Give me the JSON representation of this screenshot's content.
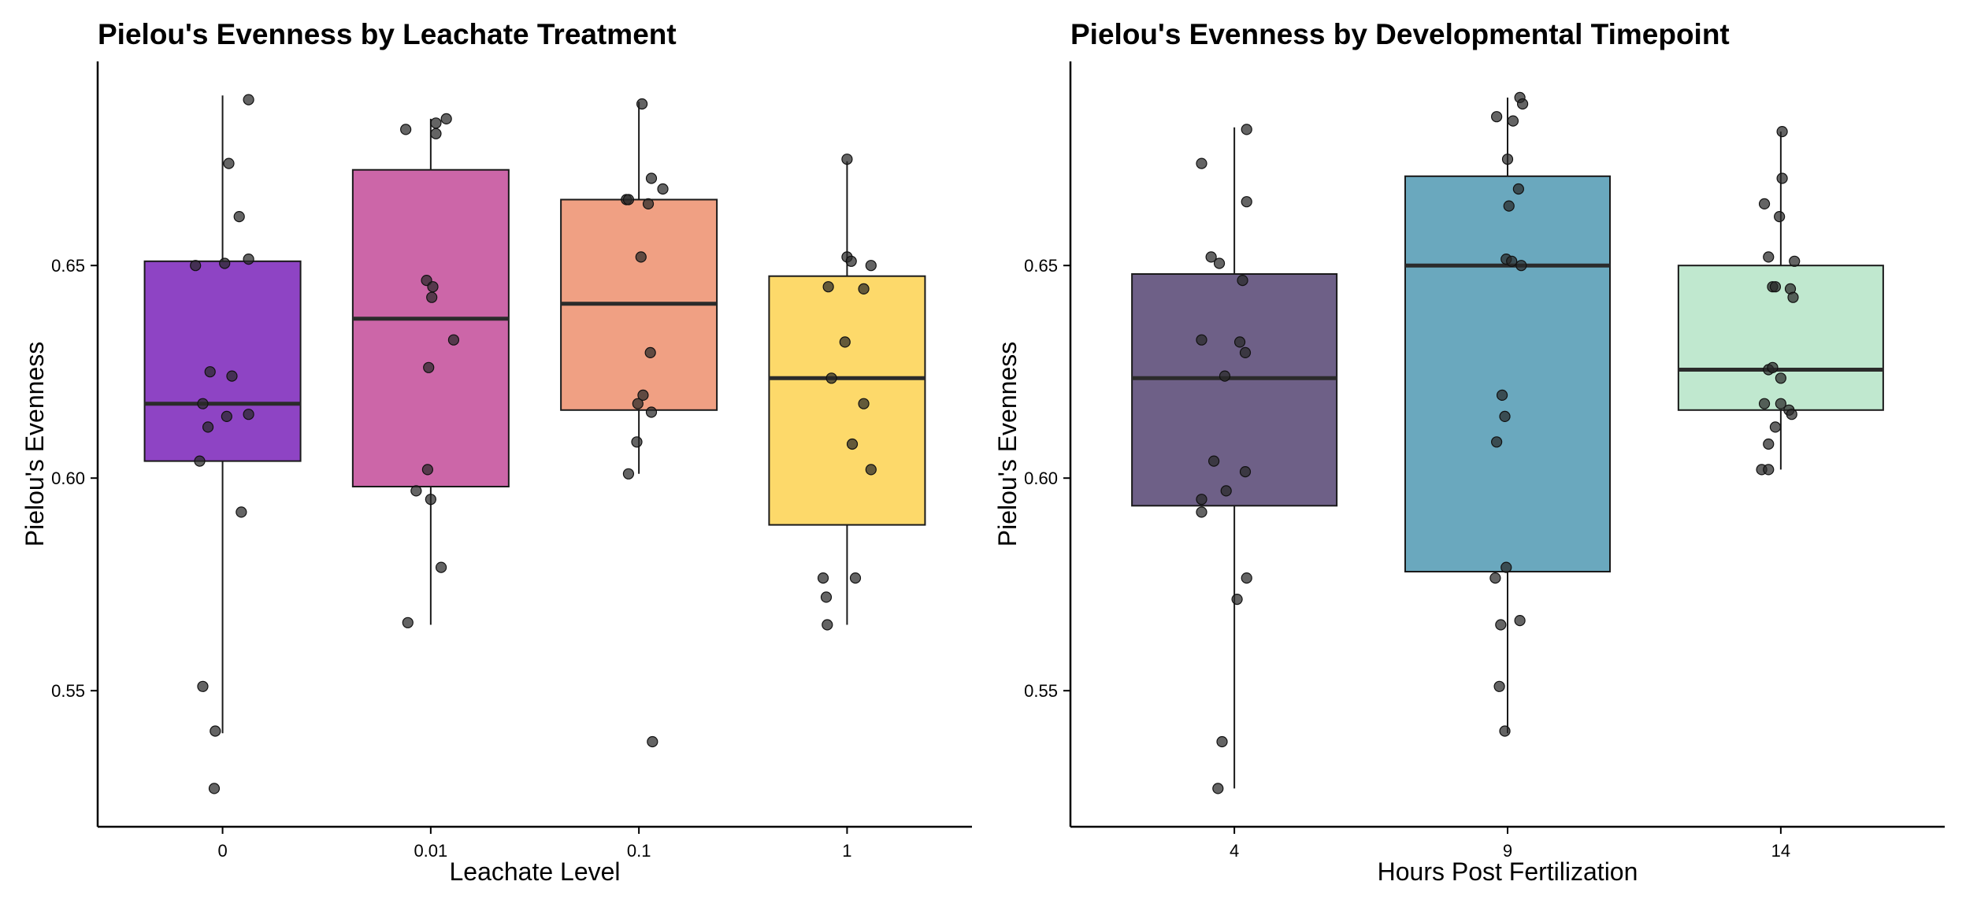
{
  "chart_data": [
    {
      "type": "box",
      "title": "Pielou's Evenness by Leachate Treatment",
      "xlabel": "Leachate Level",
      "ylabel": "Pielou's Evenness",
      "ylim": [
        0.518,
        0.698
      ],
      "yticks": [
        "0.55",
        "0.60",
        "0.65"
      ],
      "yticks_values": [
        0.55,
        0.6,
        0.65
      ],
      "categories": [
        "0",
        "0.01",
        "0.1",
        "1"
      ],
      "grid": false,
      "legend": "none",
      "boxes": [
        {
          "category": "0",
          "color": "#8E44C4",
          "q1": 0.604,
          "median": 0.6175,
          "q3": 0.651,
          "whisker_low": 0.54,
          "whisker_high": 0.69,
          "points": [
            [
              -0.26,
              0.65
            ],
            [
              0.02,
              0.6505
            ],
            [
              0.06,
              0.674
            ],
            [
              0.16,
              0.6615
            ],
            [
              0.25,
              0.6515
            ],
            [
              0.25,
              0.689
            ],
            [
              -0.12,
              0.625
            ],
            [
              0.09,
              0.624
            ],
            [
              -0.19,
              0.6175
            ],
            [
              -0.14,
              0.612
            ],
            [
              0.04,
              0.6145
            ],
            [
              0.25,
              0.615
            ],
            [
              -0.22,
              0.604
            ],
            [
              0.18,
              0.592
            ],
            [
              -0.19,
              0.551
            ],
            [
              -0.07,
              0.5405
            ],
            [
              -0.08,
              0.527
            ]
          ]
        },
        {
          "category": "0.01",
          "color": "#CC66A8",
          "q1": 0.598,
          "median": 0.6375,
          "q3": 0.6725,
          "whisker_low": 0.5655,
          "whisker_high": 0.6845,
          "points": [
            [
              -0.24,
              0.682
            ],
            [
              0.05,
              0.6835
            ],
            [
              0.05,
              0.681
            ],
            [
              0.15,
              0.6845
            ],
            [
              -0.04,
              0.6465
            ],
            [
              0.02,
              0.645
            ],
            [
              0.01,
              0.6425
            ],
            [
              0.22,
              0.6325
            ],
            [
              -0.02,
              0.626
            ],
            [
              -0.03,
              0.602
            ],
            [
              -0.14,
              0.597
            ],
            [
              0.0,
              0.595
            ],
            [
              0.1,
              0.579
            ],
            [
              -0.22,
              0.566
            ]
          ]
        },
        {
          "category": "0.1",
          "color": "#F0A083",
          "q1": 0.616,
          "median": 0.641,
          "q3": 0.6655,
          "whisker_low": 0.601,
          "whisker_high": 0.6885,
          "points": [
            [
              0.03,
              0.688
            ],
            [
              0.12,
              0.6705
            ],
            [
              0.23,
              0.668
            ],
            [
              -0.12,
              0.6655
            ],
            [
              -0.1,
              0.6655
            ],
            [
              0.09,
              0.6645
            ],
            [
              0.02,
              0.652
            ],
            [
              0.11,
              0.6295
            ],
            [
              -0.01,
              0.6175
            ],
            [
              0.04,
              0.6195
            ],
            [
              0.12,
              0.6155
            ],
            [
              -0.02,
              0.6085
            ],
            [
              -0.1,
              0.601
            ],
            [
              0.13,
              0.538
            ]
          ]
        },
        {
          "category": "1",
          "color": "#FDD96A",
          "q1": 0.589,
          "median": 0.6235,
          "q3": 0.6475,
          "whisker_low": 0.5655,
          "whisker_high": 0.6745,
          "points": [
            [
              0.0,
              0.675
            ],
            [
              0.0,
              0.652
            ],
            [
              0.04,
              0.651
            ],
            [
              0.23,
              0.65
            ],
            [
              -0.18,
              0.645
            ],
            [
              0.16,
              0.6445
            ],
            [
              -0.02,
              0.632
            ],
            [
              -0.15,
              0.6235
            ],
            [
              0.16,
              0.6175
            ],
            [
              0.05,
              0.608
            ],
            [
              0.23,
              0.602
            ],
            [
              -0.23,
              0.5765
            ],
            [
              0.08,
              0.5765
            ],
            [
              -0.2,
              0.572
            ],
            [
              -0.19,
              0.5655
            ]
          ]
        }
      ]
    },
    {
      "type": "box",
      "title": "Pielou's Evenness by Developmental Timepoint",
      "xlabel": "Hours Post Fertilization",
      "ylabel": "Pielou's Evenness",
      "ylim": [
        0.518,
        0.698
      ],
      "yticks": [
        "0.55",
        "0.60",
        "0.65"
      ],
      "yticks_values": [
        0.55,
        0.6,
        0.65
      ],
      "categories": [
        "4",
        "9",
        "14"
      ],
      "grid": false,
      "legend": "none",
      "boxes": [
        {
          "category": "4",
          "color": "#6E6087",
          "q1": 0.5935,
          "median": 0.6235,
          "q3": 0.648,
          "whisker_low": 0.527,
          "whisker_high": 0.6825,
          "points": [
            [
              -0.24,
              0.674
            ],
            [
              0.09,
              0.682
            ],
            [
              0.09,
              0.665
            ],
            [
              -0.17,
              0.652
            ],
            [
              -0.11,
              0.6505
            ],
            [
              0.06,
              0.6465
            ],
            [
              -0.24,
              0.6325
            ],
            [
              -0.07,
              0.624
            ],
            [
              0.04,
              0.632
            ],
            [
              0.08,
              0.6295
            ],
            [
              -0.15,
              0.604
            ],
            [
              0.08,
              0.6015
            ],
            [
              -0.06,
              0.597
            ],
            [
              -0.24,
              0.595
            ],
            [
              -0.24,
              0.592
            ],
            [
              0.09,
              0.5765
            ],
            [
              0.02,
              0.5715
            ],
            [
              -0.09,
              0.538
            ],
            [
              -0.12,
              0.527
            ]
          ]
        },
        {
          "category": "9",
          "color": "#6AA8BE",
          "q1": 0.578,
          "median": 0.65,
          "q3": 0.671,
          "whisker_low": 0.54,
          "whisker_high": 0.6895,
          "points": [
            [
              0.09,
              0.6895
            ],
            [
              0.11,
              0.688
            ],
            [
              -0.08,
              0.685
            ],
            [
              0.04,
              0.684
            ],
            [
              0.0,
              0.675
            ],
            [
              0.08,
              0.668
            ],
            [
              0.01,
              0.664
            ],
            [
              -0.01,
              0.6515
            ],
            [
              0.03,
              0.651
            ],
            [
              0.1,
              0.65
            ],
            [
              -0.04,
              0.6195
            ],
            [
              -0.08,
              0.6085
            ],
            [
              -0.02,
              0.6145
            ],
            [
              -0.01,
              0.579
            ],
            [
              -0.09,
              0.5765
            ],
            [
              -0.05,
              0.5655
            ],
            [
              0.09,
              0.5665
            ],
            [
              -0.06,
              0.551
            ],
            [
              -0.02,
              0.5405
            ]
          ]
        },
        {
          "category": "14",
          "color": "#C0E8CF",
          "q1": 0.616,
          "median": 0.6255,
          "q3": 0.65,
          "whisker_low": 0.602,
          "whisker_high": 0.6815,
          "points": [
            [
              0.01,
              0.6815
            ],
            [
              0.01,
              0.6705
            ],
            [
              -0.12,
              0.6645
            ],
            [
              -0.01,
              0.6615
            ],
            [
              -0.09,
              0.652
            ],
            [
              0.1,
              0.651
            ],
            [
              -0.06,
              0.645
            ],
            [
              0.07,
              0.6445
            ],
            [
              0.09,
              0.6425
            ],
            [
              -0.04,
              0.645
            ],
            [
              -0.09,
              0.6255
            ],
            [
              -0.06,
              0.626
            ],
            [
              0.0,
              0.6235
            ],
            [
              -0.12,
              0.6175
            ],
            [
              0.0,
              0.6175
            ],
            [
              0.06,
              0.616
            ],
            [
              0.08,
              0.615
            ],
            [
              -0.04,
              0.612
            ],
            [
              -0.09,
              0.608
            ],
            [
              -0.14,
              0.602
            ],
            [
              -0.09,
              0.602
            ]
          ]
        }
      ]
    }
  ]
}
